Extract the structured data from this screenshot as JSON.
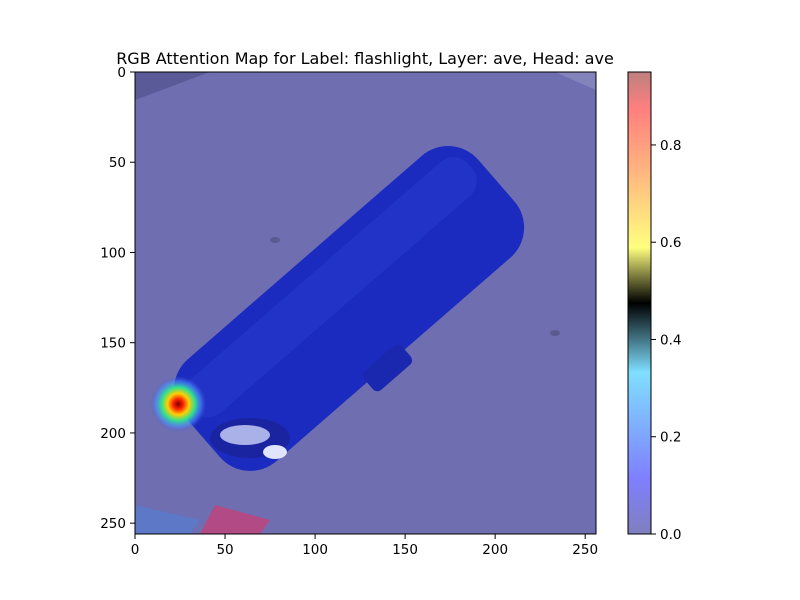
{
  "chart_data": {
    "type": "heatmap",
    "title": "RGB Attention Map for Label: flashlight, Layer: ave, Head: ave",
    "xlim": [
      0,
      256
    ],
    "ylim": [
      256,
      0
    ],
    "y_inverted": true,
    "x_ticks": [
      0,
      50,
      100,
      150,
      200,
      250
    ],
    "y_ticks": [
      0,
      50,
      100,
      150,
      200,
      250
    ],
    "colorbar": {
      "ticks": [
        0.0,
        0.2,
        0.4,
        0.6,
        0.8
      ],
      "tick_labels": [
        "0.0",
        "0.2",
        "0.4",
        "0.6",
        "0.8"
      ],
      "range": [
        0.0,
        0.95
      ],
      "colormap": "jet",
      "alpha": 0.5
    },
    "attention_peak": {
      "x": 24,
      "y": 184,
      "value": 0.95
    },
    "background_attention": 0.0,
    "colors": {
      "floor": "#6e6eb0",
      "flashlight_body": "#1a2ac0",
      "red_mat": "#c04070",
      "lens": "#d8dcf0"
    }
  }
}
